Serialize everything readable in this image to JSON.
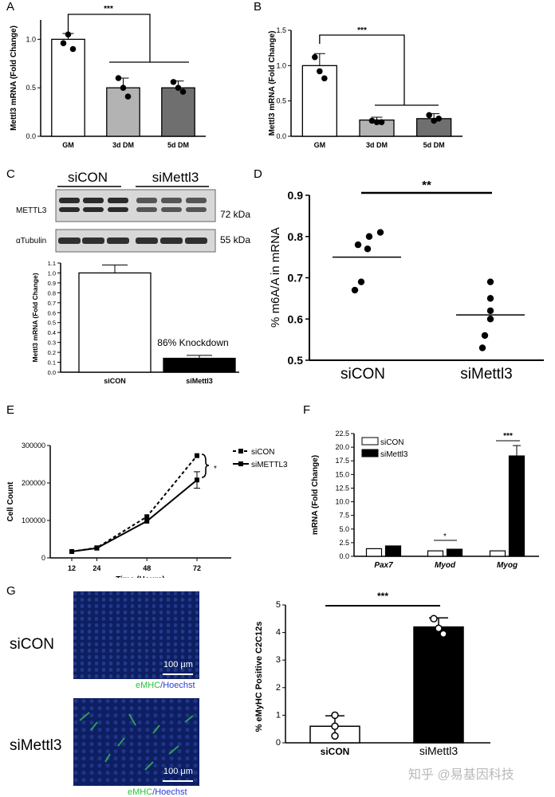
{
  "panel_letters": {
    "A": "A",
    "B": "B",
    "C": "C",
    "D": "D",
    "E": "E",
    "F": "F",
    "G": "G"
  },
  "chart_data": [
    {
      "id": "A",
      "type": "bar",
      "categories": [
        "GM",
        "3d DM",
        "5d DM"
      ],
      "values": [
        1.0,
        0.5,
        0.5
      ],
      "errors": [
        0.06,
        0.1,
        0.07
      ],
      "points": [
        [
          0.96,
          1.05,
          0.9
        ],
        [
          0.6,
          0.5,
          0.41
        ],
        [
          0.56,
          0.5,
          0.46
        ]
      ],
      "bar_colors": [
        "#ffffff",
        "#b3b3b3",
        "#6f6f6f"
      ],
      "ylabel": "Mettl3 mRNA (Fold Change)",
      "ylim": [
        0,
        1.2
      ],
      "yticks": [
        "0.0",
        "0.5",
        "1.0"
      ],
      "significance": "***"
    },
    {
      "id": "B",
      "type": "bar",
      "categories": [
        "GM",
        "3d DM",
        "5d DM"
      ],
      "values": [
        1.0,
        0.23,
        0.25
      ],
      "errors": [
        0.17,
        0.04,
        0.07
      ],
      "points": [
        [
          1.12,
          0.92,
          0.82
        ],
        [
          0.22,
          0.2,
          0.2
        ],
        [
          0.3,
          0.22,
          0.25
        ]
      ],
      "bar_colors": [
        "#ffffff",
        "#b3b3b3",
        "#6f6f6f"
      ],
      "ylabel": "Mettl3 mRNA (Fold Change)",
      "ylim": [
        0,
        1.5
      ],
      "yticks": [
        "0.0",
        "0.5",
        "1.0",
        "1.5"
      ],
      "significance": "***"
    },
    {
      "id": "C",
      "type": "bar",
      "categories": [
        "siCON",
        "siMettl3"
      ],
      "values": [
        1.0,
        0.14
      ],
      "errors": [
        0.08,
        0.03
      ],
      "bar_colors": [
        "#ffffff",
        "#000000"
      ],
      "ylabel": "Mettl3 mRNA (Fold Change)",
      "ylim": [
        0,
        1.1
      ],
      "yticks": [
        "0.0",
        "0.1",
        "0.2",
        "0.3",
        "0.4",
        "0.5",
        "0.6",
        "0.7",
        "0.8",
        "0.9",
        "1.0",
        "1.1"
      ],
      "annotation": "86% Knockdown",
      "blot": {
        "groups": [
          "siCON",
          "siMettl3"
        ],
        "rows": [
          "METTL3",
          "αTubulin"
        ],
        "markers": [
          "72 kDa",
          "55 kDa"
        ]
      }
    },
    {
      "id": "D",
      "type": "scatter",
      "categories": [
        "siCON",
        "siMettl3"
      ],
      "values": [
        [
          0.81,
          0.8,
          0.78,
          0.77,
          0.69,
          0.67
        ],
        [
          0.69,
          0.65,
          0.62,
          0.6,
          0.56,
          0.53
        ]
      ],
      "means": [
        0.75,
        0.61
      ],
      "ylabel": "% m6A/A in mRNA",
      "ylim": [
        0.5,
        0.9
      ],
      "yticks": [
        "0.5",
        "0.6",
        "0.7",
        "0.8",
        "0.9"
      ],
      "significance": "**"
    },
    {
      "id": "E",
      "type": "line",
      "x": [
        12,
        24,
        48,
        72
      ],
      "xticks": [
        "12",
        "24",
        "48",
        "72"
      ],
      "series": [
        {
          "name": "siCON",
          "values": [
            17000,
            27000,
            110000,
            273000
          ],
          "errors": [
            0,
            0,
            0,
            0
          ]
        },
        {
          "name": "siMETTL3",
          "values": [
            17000,
            26000,
            98000,
            208000
          ],
          "errors": [
            0,
            0,
            0,
            22000
          ]
        }
      ],
      "xlabel": "Time (Hours)",
      "ylabel": "Cell Count",
      "ylim": [
        0,
        300000
      ],
      "yticks": [
        "0",
        "100000",
        "200000",
        "300000"
      ],
      "significance": "*",
      "legend": "top-right"
    },
    {
      "id": "F",
      "type": "bar",
      "categories": [
        "Pax7",
        "Myod",
        "Myog"
      ],
      "series": [
        {
          "name": "siCON",
          "values": [
            1.4,
            1.0,
            1.0
          ],
          "errors": [
            0,
            0,
            0
          ]
        },
        {
          "name": "siMettl3",
          "values": [
            1.9,
            1.3,
            18.4
          ],
          "errors": [
            0,
            0,
            1.9
          ]
        }
      ],
      "ylabel": "mRNA (Fold Change)",
      "ylim": [
        0,
        22.5
      ],
      "yticks": [
        "0.0",
        "2.5",
        "5.0",
        "7.5",
        "10.0",
        "12.5",
        "15.0",
        "17.5",
        "20.0",
        "22.5"
      ],
      "significance": [
        "*",
        "***"
      ],
      "legend": "top-left"
    },
    {
      "id": "G",
      "type": "bar",
      "categories": [
        "siCON",
        "siMettl3"
      ],
      "values": [
        0.6,
        4.2
      ],
      "errors": [
        0.38,
        0.33
      ],
      "points": [
        [
          1.0,
          0.6,
          0.25
        ],
        [
          4.5,
          4.15,
          3.95
        ]
      ],
      "bar_colors": [
        "#ffffff",
        "#000000"
      ],
      "ylabel": "% eMyHC Positive C2C12s",
      "ylim": [
        0,
        5
      ],
      "yticks": [
        "0",
        "1",
        "2",
        "3",
        "4",
        "5"
      ],
      "significance": "***"
    }
  ],
  "microscopy": {
    "top_label": "siCON",
    "bottom_label": "siMettl3",
    "scale": "100 μm",
    "caption_green": "eMHC",
    "caption_sep": "/",
    "caption_blue": "Hoechst"
  },
  "watermark": "知乎 @易基因科技"
}
